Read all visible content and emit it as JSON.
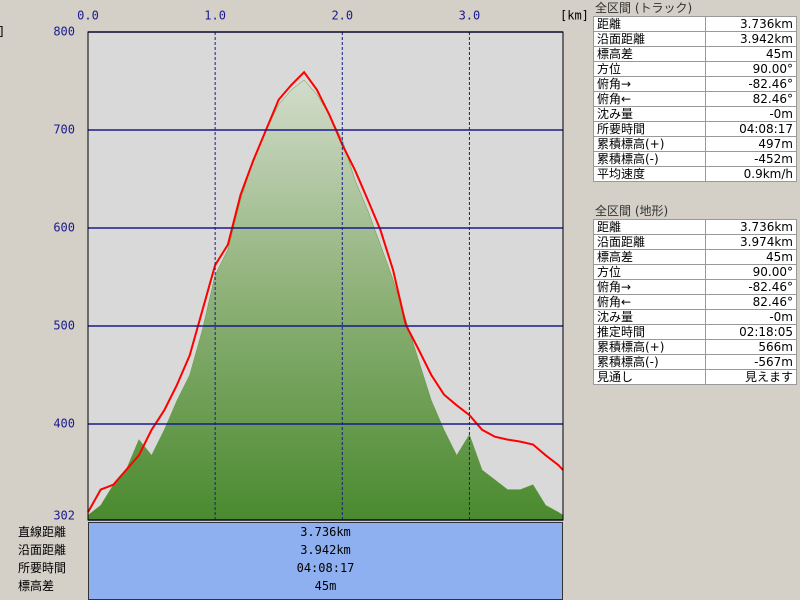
{
  "chart_data": {
    "type": "area",
    "x_unit": "[km]",
    "y_unit": "]",
    "x": [
      0,
      0.1,
      0.2,
      0.3,
      0.4,
      0.5,
      0.6,
      0.7,
      0.8,
      0.9,
      1.0,
      1.1,
      1.2,
      1.3,
      1.4,
      1.5,
      1.6,
      1.7,
      1.8,
      1.9,
      2.0,
      2.1,
      2.2,
      2.3,
      2.4,
      2.5,
      2.6,
      2.7,
      2.8,
      2.9,
      3.0,
      3.1,
      3.2,
      3.3,
      3.4,
      3.5,
      3.6,
      3.7,
      3.736
    ],
    "xlim": [
      0,
      3.736
    ],
    "xticks": [
      {
        "value": 0,
        "label": "0.0"
      },
      {
        "value": 1,
        "label": "1.0"
      },
      {
        "value": 2,
        "label": "2.0"
      },
      {
        "value": 3,
        "label": "3.0"
      }
    ],
    "ylim": [
      302,
      800
    ],
    "yticks": [
      302,
      400,
      500,
      600,
      700,
      800
    ],
    "grid": true,
    "series": [
      {
        "color": "#5e9a3e",
        "fill": true,
        "values": [
          307,
          317,
          338,
          353,
          384,
          368,
          394,
          424,
          450,
          496,
          552,
          578,
          629,
          669,
          700,
          726,
          741,
          751,
          736,
          715,
          690,
          649,
          618,
          583,
          547,
          506,
          465,
          424,
          394,
          368,
          389,
          353,
          343,
          333,
          333,
          338,
          317,
          310,
          307
        ]
      },
      {
        "color": "#ff0000",
        "fill": false,
        "values": [
          310,
          333,
          338,
          353,
          368,
          394,
          414,
          440,
          470,
          516,
          562,
          583,
          634,
          669,
          700,
          731,
          746,
          759,
          741,
          715,
          685,
          659,
          629,
          598,
          557,
          501,
          476,
          450,
          430,
          419,
          409,
          394,
          387,
          384,
          382,
          379,
          368,
          358,
          353
        ]
      }
    ]
  },
  "summary": {
    "rows": [
      [
        "直線距離",
        "3.736km"
      ],
      [
        "沿面距離",
        "3.942km"
      ],
      [
        "所要時間",
        "04:08:17"
      ],
      [
        "標高差",
        "45m"
      ]
    ]
  },
  "panels": [
    {
      "title": "全区間 (トラック)",
      "rows": [
        [
          "距離",
          "3.736km"
        ],
        [
          "沿面距離",
          "3.942km"
        ],
        [
          "標高差",
          "45m"
        ],
        [
          "方位",
          "90.00°"
        ],
        [
          "俯角→",
          "-82.46°"
        ],
        [
          "俯角←",
          "82.46°"
        ],
        [
          "沈み量",
          "-0m"
        ],
        [
          "所要時間",
          "04:08:17"
        ],
        [
          "累積標高(+)",
          "497m"
        ],
        [
          "累積標高(-)",
          "-452m"
        ],
        [
          "平均速度",
          "0.9km/h"
        ]
      ]
    },
    {
      "title": "全区間 (地形)",
      "rows": [
        [
          "距離",
          "3.736km"
        ],
        [
          "沿面距離",
          "3.974km"
        ],
        [
          "標高差",
          "45m"
        ],
        [
          "方位",
          "90.00°"
        ],
        [
          "俯角→",
          "-82.46°"
        ],
        [
          "俯角←",
          "82.46°"
        ],
        [
          "沈み量",
          "-0m"
        ],
        [
          "推定時間",
          "02:18:05"
        ],
        [
          "累積標高(+)",
          "566m"
        ],
        [
          "累積標高(-)",
          "-567m"
        ],
        [
          "見通し",
          "見えます"
        ]
      ]
    }
  ]
}
